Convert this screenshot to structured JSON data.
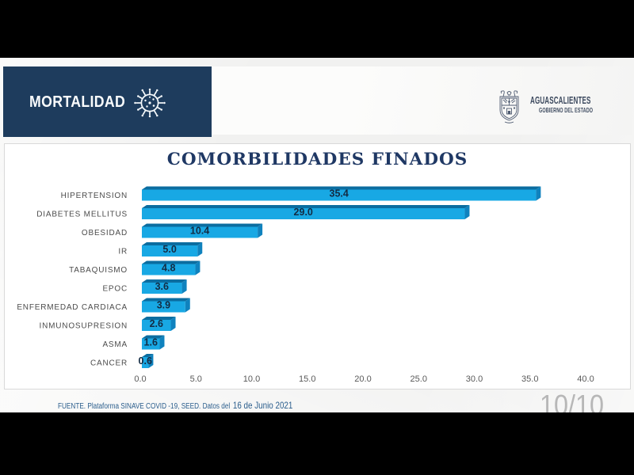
{
  "brand": {
    "title": "MORTALIDAD",
    "icon": "virus-icon",
    "bg_color": "#1e3c5d"
  },
  "logo": {
    "name": "AGUASCALIENTES",
    "subtitle": "GOBIERNO DEL ESTADO",
    "icon": "coat-of-arms-icon",
    "color": "#3d4a5f"
  },
  "chart_data": {
    "type": "bar",
    "orientation": "horizontal",
    "title": "COMORBILIDADES FINADOS",
    "categories": [
      "HIPERTENSION",
      "DIABETES MELLITUS",
      "OBESIDAD",
      "IR",
      "TABAQUISMO",
      "EPOC",
      "ENFERMEDAD CARDIACA",
      "INMUNOSUPRESION",
      "ASMA",
      "CANCER"
    ],
    "values": [
      35.4,
      29.0,
      10.4,
      5.0,
      4.8,
      3.6,
      3.9,
      2.6,
      1.6,
      0.6
    ],
    "value_labels": [
      "35.4",
      "29.0",
      "10.4",
      "5.0",
      "4.8",
      "3.6",
      "3.9",
      "2.6",
      "1.6",
      "0.6"
    ],
    "x_ticks": [
      "0.0",
      "5.0",
      "10.0",
      "15.0",
      "20.0",
      "25.0",
      "30.0",
      "35.0",
      "40.0"
    ],
    "xlim": [
      0,
      40
    ],
    "xlabel": "",
    "ylabel": "",
    "grid": false,
    "legend": false,
    "value_label_position": "inside-center",
    "bar_face_color": "#18a8e4",
    "bar_top_color": "#0b6da0",
    "bar_side_color": "#0f82be",
    "title_color": "#1f3864",
    "category_label_color": "#4c4c4c",
    "value_label_color": "#132c44",
    "tick_label_color": "#595959"
  },
  "footer": {
    "source_prefix": "FUENTE. Plataforma SINAVE COVID -19, SEED. Datos del",
    "source_date": "16 de Junio 2021"
  },
  "page": {
    "indicator": "10/10"
  }
}
